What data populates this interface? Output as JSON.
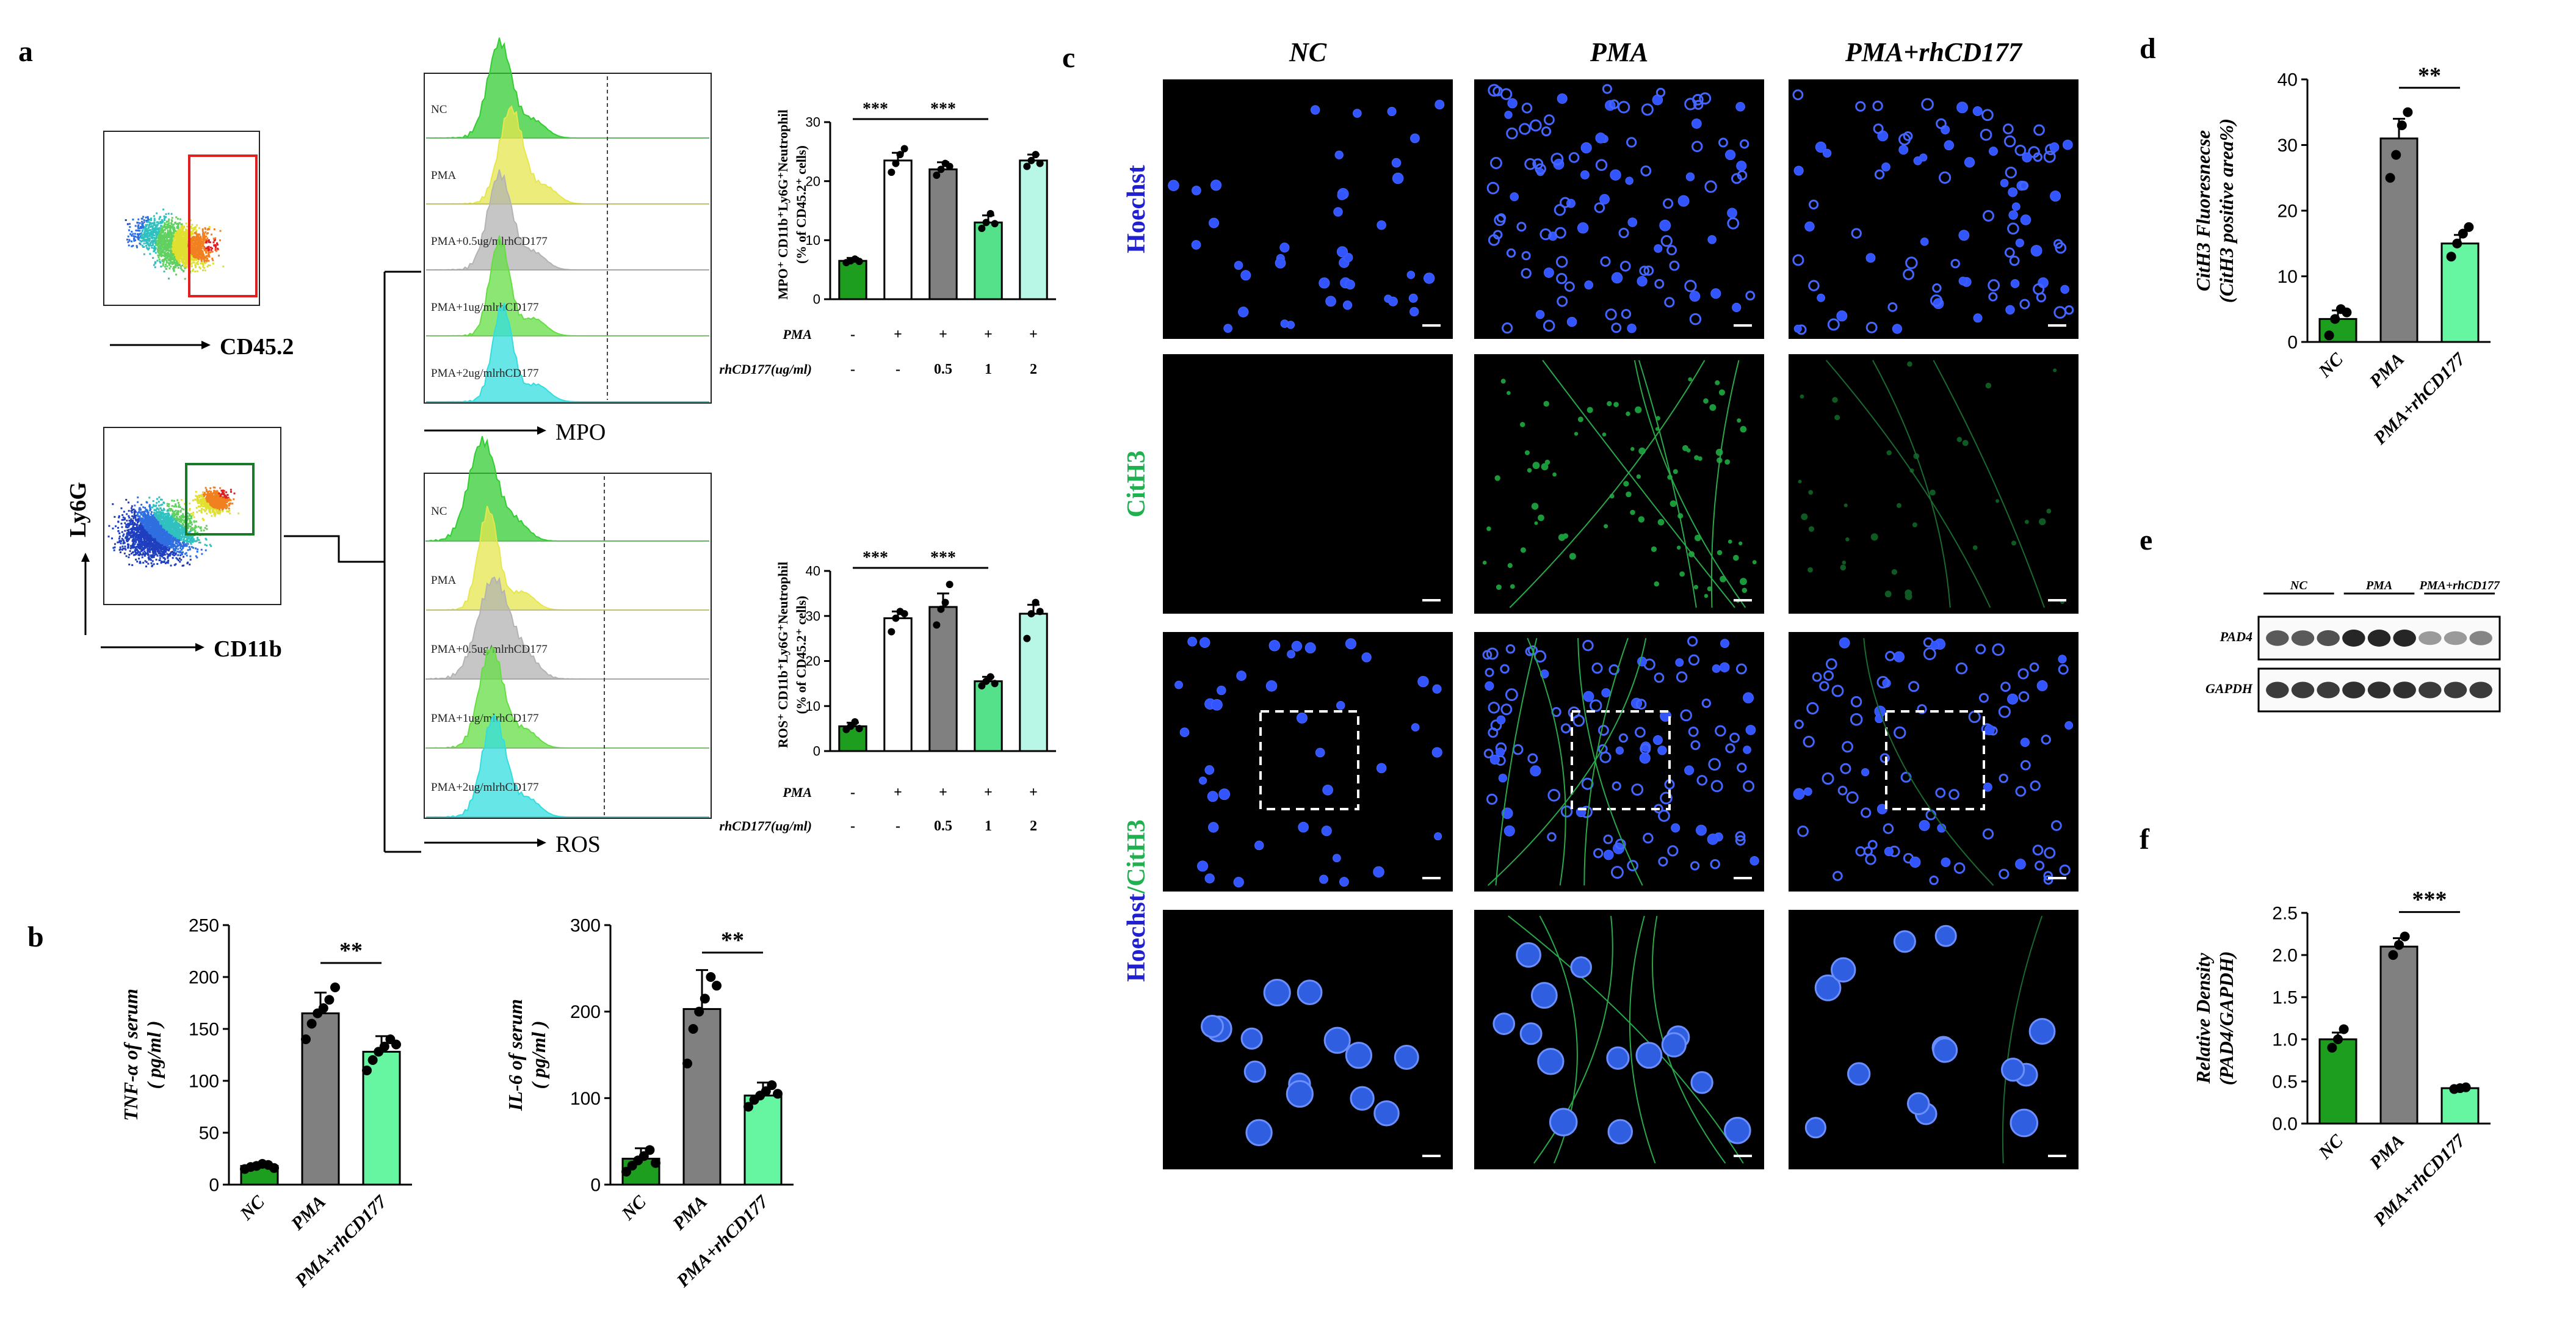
{
  "panel_letters": {
    "a": "a",
    "b": "b",
    "c": "c",
    "d": "d",
    "e": "e",
    "f": "f"
  },
  "flow": {
    "cd45_label": "CD45.2",
    "ly6g_label": "Ly6G",
    "cd11b_label": "CD11b",
    "mpo_axis": "MPO",
    "ros_axis": "ROS",
    "mpo_histograms": [
      "NC",
      "PMA",
      "PMA+0.5ug/mlrhCD177",
      "PMA+1ug/mlrhCD177",
      "PMA+2ug/mlrhCD177"
    ],
    "ros_histograms": [
      "NC",
      "PMA",
      "PMA+0.5ug/mlrhCD177",
      "PMA+1ug/mlrhCD177",
      "PMA+2ug/mlrhCD177"
    ],
    "hist_colors": [
      "#33cc33",
      "#e6e64d",
      "#b3b3b3",
      "#66dd44",
      "#33dddd"
    ]
  },
  "treatment_table": {
    "pma_label": "PMA",
    "rh_label": "rhCD177(ug/ml)",
    "pma_row": [
      "-",
      "+",
      "+",
      "+",
      "+"
    ],
    "rh_row": [
      "-",
      "-",
      "0.5",
      "1",
      "2"
    ]
  },
  "micro": {
    "columns": [
      "NC",
      "PMA",
      "PMA+rhCD177"
    ],
    "row_hoechst": "Hoechst",
    "row_cith3": "CitH3",
    "row_merge_a": "Hoechst",
    "row_merge_sep": "/",
    "row_merge_b": "CitH3"
  },
  "western": {
    "groups": [
      "NC",
      "PMA",
      "PMA+rhCD177"
    ],
    "bands": [
      "PAD4",
      "GAPDH"
    ]
  },
  "bar_colors": {
    "nc": "#1e9e1e",
    "pma": "#808080",
    "rh": "#66f5a0",
    "white": "#ffffff",
    "grey": "#808080",
    "mid": "#55e08a",
    "light": "#b8f7e6"
  },
  "chart_data": [
    {
      "id": "a-mpo",
      "type": "bar",
      "ylabel": "MPO⁺ CD11b⁺Ly6G⁺Neutrophil (% of CD45.2⁺ cells)",
      "ylim": [
        0,
        30
      ],
      "yticks": [
        0,
        10,
        20,
        30
      ],
      "categories": [
        "NC",
        "PMA",
        "PMA+0.5",
        "PMA+1",
        "PMA+2"
      ],
      "values": [
        6.5,
        23.5,
        22.0,
        13.0,
        23.5
      ],
      "errors": [
        0.5,
        1.3,
        1.2,
        1.2,
        1.0
      ],
      "points": [
        [
          6.2,
          6.5,
          6.8,
          6.4
        ],
        [
          21.5,
          23.0,
          24.5,
          25.5
        ],
        [
          21.0,
          22.0,
          23.0,
          22.5
        ],
        [
          12.0,
          13.0,
          14.5,
          12.8
        ],
        [
          22.5,
          23.5,
          24.5,
          23.0
        ]
      ],
      "significance": [
        {
          "from": 0,
          "to": 1,
          "label": "***"
        },
        {
          "from": 1,
          "to": 3,
          "label": "***"
        }
      ]
    },
    {
      "id": "a-ros",
      "type": "bar",
      "ylabel": "ROS⁺ CD11b⁺Ly6G⁺Neutrophil (% of CD45.2⁺ cells)",
      "ylim": [
        0,
        40
      ],
      "yticks": [
        0,
        10,
        20,
        30,
        40
      ],
      "categories": [
        "NC",
        "PMA",
        "PMA+0.5",
        "PMA+1",
        "PMA+2"
      ],
      "values": [
        5.5,
        29.5,
        32.0,
        15.5,
        30.5
      ],
      "errors": [
        0.8,
        1.5,
        3.0,
        1.0,
        2.0
      ],
      "points": [
        [
          4.8,
          5.5,
          6.5,
          5.0
        ],
        [
          26.5,
          29.5,
          31.0,
          30.5
        ],
        [
          28.0,
          31.5,
          33.0,
          37.0
        ],
        [
          14.5,
          15.5,
          16.5,
          15.0
        ],
        [
          25.0,
          30.5,
          33.0,
          31.0
        ]
      ],
      "significance": [
        {
          "from": 0,
          "to": 1,
          "label": "***"
        },
        {
          "from": 1,
          "to": 3,
          "label": "***"
        }
      ]
    },
    {
      "id": "b-tnf",
      "type": "bar",
      "ylabel": "TNF-α of serum ( pg/ml )",
      "ylim": [
        0,
        250
      ],
      "yticks": [
        0,
        50,
        100,
        150,
        200,
        250
      ],
      "categories": [
        "NC",
        "PMA",
        "PMA+rhCD177"
      ],
      "values": [
        18,
        165,
        128
      ],
      "errors": [
        3,
        20,
        15
      ],
      "points": [
        [
          15,
          17,
          18,
          20,
          19,
          16
        ],
        [
          140,
          155,
          165,
          170,
          178,
          190
        ],
        [
          110,
          120,
          128,
          133,
          140,
          135
        ]
      ],
      "significance": [
        {
          "from": 1,
          "to": 2,
          "label": "**"
        }
      ]
    },
    {
      "id": "b-il6",
      "type": "bar",
      "ylabel": "IL-6 of serum ( pg/ml )",
      "ylim": [
        0,
        300
      ],
      "yticks": [
        0,
        100,
        200,
        300
      ],
      "categories": [
        "NC",
        "PMA",
        "PMA+rhCD177"
      ],
      "values": [
        30,
        203,
        103
      ],
      "errors": [
        12,
        45,
        15
      ],
      "points": [
        [
          15,
          22,
          28,
          33,
          40,
          25
        ],
        [
          140,
          180,
          200,
          215,
          240,
          230
        ],
        [
          90,
          98,
          103,
          108,
          115,
          105
        ]
      ],
      "significance": [
        {
          "from": 1,
          "to": 2,
          "label": "**"
        }
      ]
    },
    {
      "id": "d-cith3",
      "type": "bar",
      "ylabel": "CitH3 Fluoresnecse (CitH3 positive area%)",
      "ylim": [
        0,
        40
      ],
      "yticks": [
        0,
        10,
        20,
        30,
        40
      ],
      "categories": [
        "NC",
        "PMA",
        "PMA+rhCD177"
      ],
      "values": [
        3.5,
        31.0,
        15.0
      ],
      "errors": [
        1.3,
        3.0,
        1.3
      ],
      "points": [
        [
          1.0,
          3.5,
          5.0,
          4.5
        ],
        [
          25.0,
          28.5,
          33.0,
          35.0
        ],
        [
          13.0,
          15.0,
          16.5,
          17.5
        ]
      ],
      "significance": [
        {
          "from": 1,
          "to": 2,
          "label": "**"
        }
      ]
    },
    {
      "id": "f-pad4",
      "type": "bar",
      "ylabel": "Relative Density (PAD4/GAPDH)",
      "ylim": [
        0,
        2.5
      ],
      "yticks": [
        0.0,
        0.5,
        1.0,
        1.5,
        2.0,
        2.5
      ],
      "categories": [
        "NC",
        "PMA",
        "PMA+rhCD177"
      ],
      "values": [
        1.0,
        2.1,
        0.42
      ],
      "errors": [
        0.08,
        0.1,
        0.02
      ],
      "points": [
        [
          0.9,
          1.0,
          1.12
        ],
        [
          2.0,
          2.12,
          2.22
        ],
        [
          0.41,
          0.42,
          0.43
        ]
      ],
      "significance": [
        {
          "from": 1,
          "to": 2,
          "label": "***"
        }
      ]
    }
  ]
}
